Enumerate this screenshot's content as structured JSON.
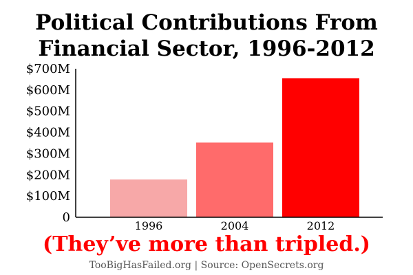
{
  "chart_data": {
    "type": "bar",
    "title_lines": [
      "Political Contributions From",
      "Financial Sector, 1996-2012"
    ],
    "categories": [
      "1996",
      "2004",
      "2012"
    ],
    "values": [
      178,
      352,
      655
    ],
    "unit": "millions USD",
    "ylim": [
      0,
      700
    ],
    "y_ticks": [
      0,
      100,
      200,
      300,
      400,
      500,
      600,
      700
    ],
    "y_tick_labels": [
      "0",
      "$100M",
      "$200M",
      "$300M",
      "$400M",
      "$500M",
      "$600M",
      "$700M"
    ],
    "bar_colors": [
      "#f7a8a8",
      "#ff6b6b",
      "#ff0000"
    ],
    "grid": false,
    "annotation": "(They’ve more than tripled.)",
    "annotation_color": "#ff0000"
  },
  "footer": {
    "credit": "TooBigHasFailed.org",
    "separator": "|",
    "source": "Source: OpenSecrets.org"
  }
}
